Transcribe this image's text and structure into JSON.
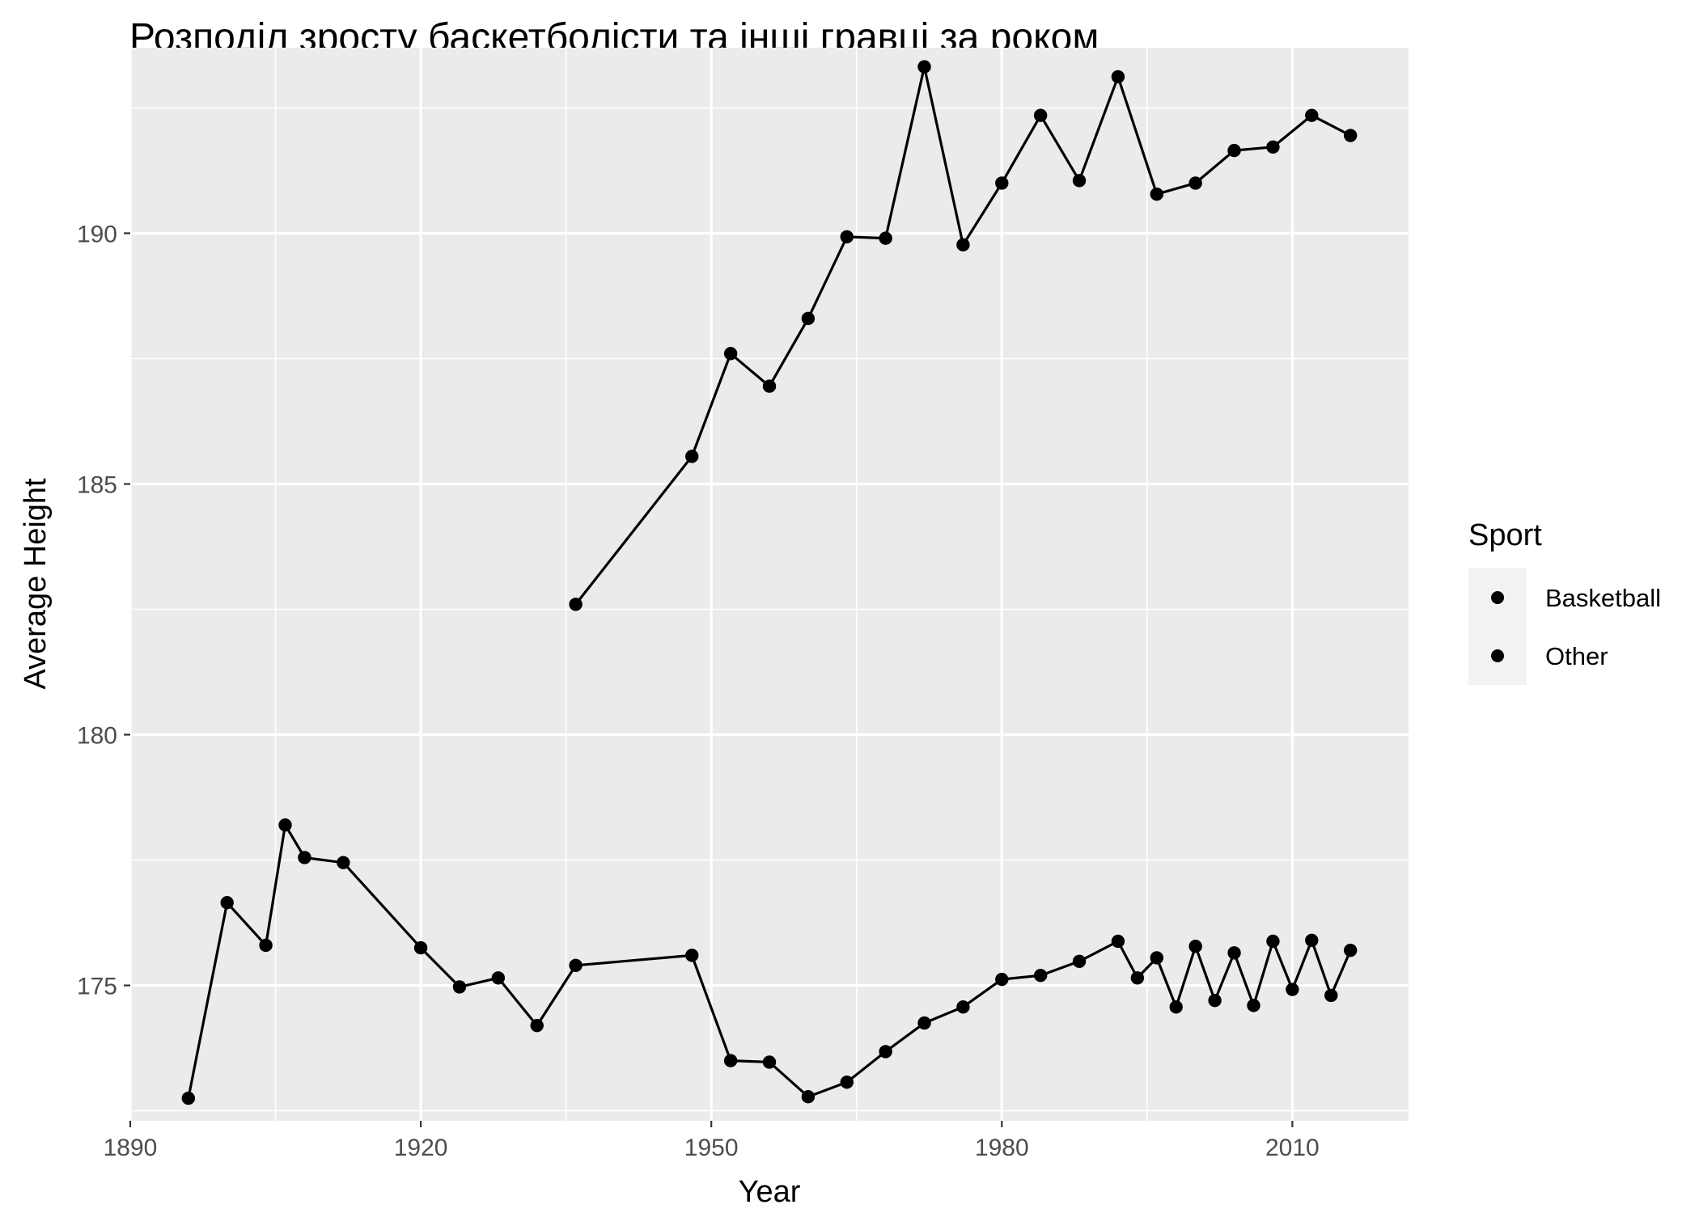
{
  "chart_data": {
    "type": "line",
    "title": "Розподіл зросту баскетболісти та інші гравці за роком",
    "xlabel": "Year",
    "ylabel": "Average Height",
    "xlim": [
      1890,
      2022
    ],
    "ylim": [
      172.3,
      193.7
    ],
    "x_ticks": [
      1890,
      1920,
      1950,
      1980,
      2010
    ],
    "y_ticks": [
      175,
      180,
      185,
      190
    ],
    "grid": true,
    "legend": {
      "title": "Sport",
      "position": "right"
    },
    "colors": {
      "panel": "#ebebeb",
      "grid": "#ffffff",
      "line": "#000000",
      "tick_text": "#4d4d4d",
      "legend_key": "#f2f2f2"
    },
    "series": [
      {
        "name": "Basketball",
        "x": [
          1936,
          1948,
          1952,
          1956,
          1960,
          1964,
          1968,
          1972,
          1976,
          1980,
          1984,
          1988,
          1992,
          1996,
          2000,
          2004,
          2008,
          2012,
          2016
        ],
        "y": [
          182.6,
          185.55,
          187.6,
          186.95,
          188.3,
          189.93,
          189.9,
          193.32,
          189.77,
          191.0,
          192.35,
          191.05,
          193.12,
          190.78,
          191.0,
          191.65,
          191.72,
          192.35,
          191.95
        ]
      },
      {
        "name": "Other",
        "x": [
          1896,
          1900,
          1904,
          1906,
          1908,
          1912,
          1920,
          1924,
          1928,
          1932,
          1936,
          1948,
          1952,
          1956,
          1960,
          1964,
          1968,
          1972,
          1976,
          1980,
          1984,
          1988,
          1992,
          1994,
          1996,
          1998,
          2000,
          2002,
          2004,
          2006,
          2008,
          2010,
          2012,
          2014,
          2016
        ],
        "y": [
          172.75,
          176.65,
          175.8,
          178.2,
          177.55,
          177.45,
          175.75,
          174.97,
          175.15,
          174.2,
          175.4,
          175.6,
          173.5,
          173.47,
          172.78,
          173.07,
          173.68,
          174.25,
          174.57,
          175.12,
          175.2,
          175.48,
          175.88,
          175.15,
          175.55,
          174.57,
          175.78,
          174.7,
          175.65,
          174.6,
          175.88,
          174.92,
          175.9,
          174.8,
          175.7
        ]
      }
    ]
  }
}
